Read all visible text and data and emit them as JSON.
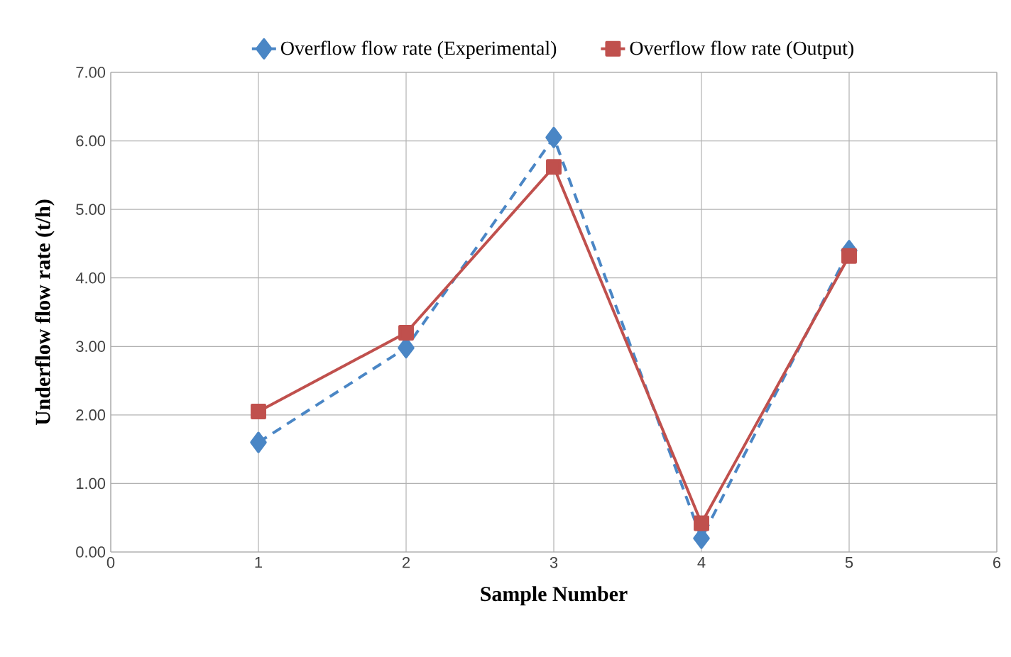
{
  "chart_data": {
    "type": "line",
    "xlabel": "Sample Number",
    "ylabel": "Underflow flow rate (t/h)",
    "x": [
      1,
      2,
      3,
      4,
      5
    ],
    "series": [
      {
        "name": "Overflow flow rate (Experimental)",
        "color": "#4a86c5",
        "values": [
          1.6,
          2.98,
          6.05,
          0.2,
          4.4
        ],
        "marker": "diamond",
        "line_style": "dashed"
      },
      {
        "name": "Overflow flow rate (Output)",
        "color": "#c0504d",
        "values": [
          2.05,
          3.2,
          5.62,
          0.42,
          4.32
        ],
        "marker": "square",
        "line_style": "solid"
      }
    ],
    "xlim": [
      0,
      6
    ],
    "xticks": [
      0,
      1,
      2,
      3,
      4,
      5,
      6
    ],
    "ylim": [
      0,
      7
    ],
    "yticks": [
      {
        "value": 0,
        "label": "0.00"
      },
      {
        "value": 1,
        "label": "1.00"
      },
      {
        "value": 2,
        "label": "2.00"
      },
      {
        "value": 3,
        "label": "3.00"
      },
      {
        "value": 4,
        "label": "4.00"
      },
      {
        "value": 5,
        "label": "5.00"
      },
      {
        "value": 6,
        "label": "6.00"
      },
      {
        "value": 7,
        "label": "7.00"
      }
    ],
    "grid": true,
    "legend": "top"
  }
}
